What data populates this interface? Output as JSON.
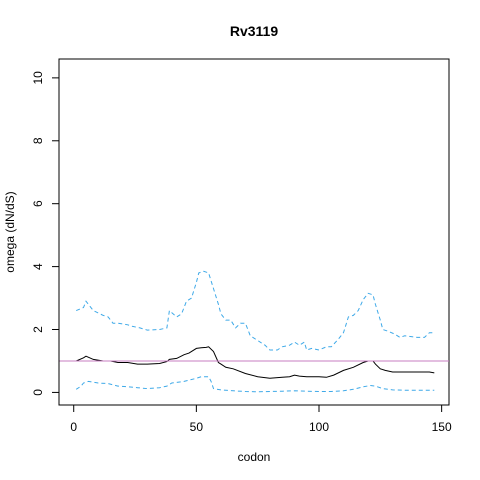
{
  "chart_data": {
    "type": "line",
    "title": "Rv3119",
    "xlabel": "codon",
    "ylabel": "omega (dN/dS)",
    "xlim": [
      -6,
      153
    ],
    "ylim": [
      -0.4,
      10.6
    ],
    "x_ticks": [
      0,
      50,
      100,
      150
    ],
    "y_ticks": [
      0,
      2,
      4,
      6,
      8,
      10
    ],
    "x_tick_labels": [
      "0",
      "50",
      "100",
      "150"
    ],
    "y_tick_labels": [
      "0",
      "2",
      "4",
      "6",
      "8",
      "10"
    ],
    "grid": false,
    "reference_line": {
      "y": 1,
      "color": "#c77cc0"
    },
    "series": [
      {
        "style": "dashed",
        "color": "#3ea9e8",
        "x": [
          1,
          4,
          5,
          8,
          12,
          14,
          16,
          18,
          22,
          24,
          27,
          30,
          35,
          38,
          39,
          42,
          44,
          46,
          48,
          50,
          51,
          53,
          55,
          57,
          59,
          60,
          62,
          64,
          66,
          68,
          70,
          72,
          75,
          78,
          80,
          83,
          85,
          88,
          90,
          92,
          94,
          95,
          97,
          100,
          103,
          105,
          108,
          110,
          112,
          114,
          116,
          118,
          120,
          122,
          123,
          125,
          126,
          128,
          131,
          133,
          135,
          140,
          143,
          145,
          147
        ],
        "y": [
          2.6,
          2.7,
          2.9,
          2.6,
          2.45,
          2.4,
          2.2,
          2.2,
          2.15,
          2.1,
          2.05,
          1.98,
          2.0,
          2.05,
          2.6,
          2.4,
          2.5,
          2.9,
          3.0,
          3.5,
          3.8,
          3.85,
          3.8,
          3.3,
          2.8,
          2.5,
          2.3,
          2.3,
          2.05,
          2.2,
          2.2,
          1.8,
          1.65,
          1.5,
          1.35,
          1.35,
          1.45,
          1.5,
          1.6,
          1.5,
          1.6,
          1.35,
          1.4,
          1.35,
          1.45,
          1.45,
          1.7,
          1.9,
          2.4,
          2.45,
          2.6,
          2.95,
          3.15,
          3.1,
          2.8,
          2.3,
          2.0,
          1.95,
          1.85,
          1.75,
          1.8,
          1.75,
          1.75,
          1.9,
          1.9
        ]
      },
      {
        "style": "solid",
        "color": "#000000",
        "x": [
          1,
          4,
          5,
          8,
          12,
          15,
          18,
          22,
          26,
          30,
          35,
          38,
          39,
          42,
          45,
          47,
          50,
          52,
          54,
          55,
          57,
          59,
          60,
          62,
          65,
          70,
          75,
          80,
          85,
          88,
          90,
          92,
          95,
          98,
          100,
          103,
          106,
          110,
          114,
          118,
          120,
          122,
          123,
          125,
          127,
          130,
          135,
          140,
          145,
          147
        ],
        "y": [
          1.0,
          1.1,
          1.15,
          1.05,
          1.0,
          1.0,
          0.95,
          0.95,
          0.9,
          0.9,
          0.92,
          0.98,
          1.05,
          1.08,
          1.2,
          1.25,
          1.4,
          1.42,
          1.43,
          1.45,
          1.3,
          0.95,
          0.9,
          0.8,
          0.75,
          0.6,
          0.5,
          0.45,
          0.48,
          0.5,
          0.55,
          0.52,
          0.5,
          0.5,
          0.5,
          0.48,
          0.55,
          0.7,
          0.8,
          0.95,
          1.0,
          1.0,
          0.9,
          0.75,
          0.7,
          0.65,
          0.65,
          0.65,
          0.65,
          0.62
        ]
      },
      {
        "style": "dashed",
        "color": "#3ea9e8",
        "x": [
          1,
          3,
          4,
          6,
          10,
          14,
          18,
          22,
          26,
          30,
          35,
          38,
          40,
          45,
          50,
          52,
          55,
          56,
          57,
          60,
          65,
          70,
          75,
          80,
          85,
          90,
          95,
          100,
          105,
          110,
          114,
          118,
          121,
          123,
          126,
          130,
          135,
          140,
          145,
          147
        ],
        "y": [
          0.1,
          0.2,
          0.3,
          0.35,
          0.3,
          0.28,
          0.2,
          0.18,
          0.15,
          0.12,
          0.15,
          0.2,
          0.3,
          0.35,
          0.45,
          0.5,
          0.5,
          0.35,
          0.12,
          0.08,
          0.05,
          0.03,
          0.02,
          0.03,
          0.04,
          0.05,
          0.04,
          0.03,
          0.03,
          0.05,
          0.1,
          0.18,
          0.22,
          0.2,
          0.12,
          0.08,
          0.07,
          0.07,
          0.07,
          0.07
        ]
      }
    ]
  }
}
